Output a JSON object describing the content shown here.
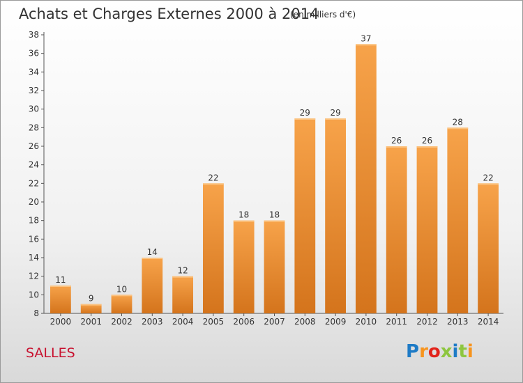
{
  "header": {
    "title": "Achats et Charges Externes 2000 à 2014",
    "unit": "(en milliers d'€)"
  },
  "footer": {
    "commune": "SALLES",
    "logo_letters": [
      "P",
      "r",
      "o",
      "x",
      "i",
      "t",
      "i"
    ]
  },
  "chart_data": {
    "type": "bar",
    "title": "Achats et Charges Externes 2000 à 2014",
    "subtitle": "(en milliers d'€)",
    "xlabel": "",
    "ylabel": "",
    "categories": [
      "2000",
      "2001",
      "2002",
      "2003",
      "2004",
      "2005",
      "2006",
      "2007",
      "2008",
      "2009",
      "2010",
      "2011",
      "2012",
      "2013",
      "2014"
    ],
    "values": [
      11,
      9,
      10,
      14,
      12,
      22,
      18,
      18,
      29,
      29,
      37,
      26,
      26,
      28,
      22
    ],
    "data_labels": [
      "11",
      "9",
      "10",
      "14",
      "12",
      "22",
      "18",
      "18",
      "29",
      "29",
      "37",
      "26",
      "26",
      "28",
      "22"
    ],
    "ylim": [
      8,
      38
    ],
    "yticks": [
      "8",
      "10",
      "12",
      "14",
      "16",
      "18",
      "20",
      "22",
      "24",
      "26",
      "28",
      "30",
      "32",
      "34",
      "36",
      "38"
    ],
    "grid": false,
    "legend": "none",
    "bar_color_light": "#f7a34a",
    "bar_color_dark": "#d4741c"
  }
}
